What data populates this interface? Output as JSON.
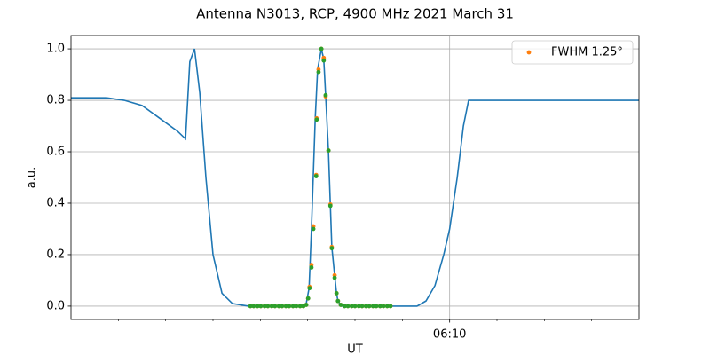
{
  "chart_data": [
    {
      "type": "line",
      "title": "Antenna N3013, RCP, 4900 MHz 2021 March 31",
      "xlabel": "UT",
      "ylabel": "a.u.",
      "x": [
        2.0,
        2.375,
        2.75,
        3.125,
        3.5,
        3.875,
        4.25,
        4.42,
        4.51,
        4.61,
        4.72,
        4.85,
        5.0,
        5.19,
        5.41,
        5.75,
        6.125,
        6.875,
        6.97,
        7.03,
        7.08,
        7.16,
        7.21,
        7.29,
        7.34,
        7.38,
        7.44,
        7.48,
        7.51,
        7.57,
        7.61,
        7.64,
        7.72,
        8.375,
        9.31,
        9.5,
        9.69,
        9.875,
        10.0,
        10.16,
        10.29,
        10.4,
        10.53,
        11.0,
        11.75,
        12.5,
        13.25,
        14.0
      ],
      "values": [
        0.81,
        0.81,
        0.81,
        0.8,
        0.78,
        0.73,
        0.68,
        0.65,
        0.95,
        1.0,
        0.83,
        0.5,
        0.2,
        0.05,
        0.01,
        0.0,
        0.0,
        0.0,
        0.01,
        0.07,
        0.3,
        0.73,
        0.92,
        1.0,
        0.96,
        0.82,
        0.6,
        0.39,
        0.23,
        0.12,
        0.05,
        0.02,
        0.0,
        0.0,
        0.0,
        0.02,
        0.08,
        0.2,
        0.3,
        0.5,
        0.7,
        0.8,
        0.8,
        0.8,
        0.8,
        0.8,
        0.8,
        0.8
      ],
      "color": "#1f77b4",
      "xlim": [
        2,
        14
      ],
      "xticks": [
        {
          "value": 10,
          "label": "06:10"
        }
      ],
      "xminorticks": [
        3,
        4,
        5,
        6,
        7,
        8,
        9,
        11,
        12,
        13
      ],
      "ylim": [
        -0.052,
        1.052
      ],
      "yticks": [
        {
          "value": 0,
          "label": "0.0"
        },
        0.2,
        0.4,
        0.6,
        0.8,
        {
          "value": 1,
          "label": "1.0"
        }
      ],
      "grid": true
    },
    {
      "type": "scatter",
      "legend": "upper right",
      "x": [
        5.79,
        5.86,
        5.94,
        6.01,
        6.09,
        6.16,
        6.24,
        6.31,
        6.39,
        6.46,
        6.54,
        6.61,
        6.69,
        6.76,
        6.84,
        6.91,
        6.97,
        7.01,
        7.04,
        7.08,
        7.12,
        7.18,
        7.19,
        7.23,
        7.29,
        7.34,
        7.38,
        7.44,
        7.48,
        7.51,
        7.57,
        7.61,
        7.64,
        7.7,
        7.78,
        7.85,
        7.93,
        8.0,
        8.08,
        8.15,
        8.23,
        8.3,
        8.38,
        8.45,
        8.53,
        8.6,
        8.68,
        8.75
      ],
      "series": [
        {
          "name": "FWHM 1.25°",
          "color": "#ff7f0e",
          "values": [
            0,
            0,
            0,
            0,
            0,
            0,
            0,
            0,
            0,
            0,
            0,
            0,
            0,
            0,
            0,
            0,
            0.005,
            0.03,
            0.075,
            0.16,
            0.31,
            0.51,
            0.73,
            0.92,
            1.0,
            0.965,
            0.815,
            0.605,
            0.395,
            0.23,
            0.12,
            0.05,
            0.02,
            0.005,
            0,
            0,
            0,
            0,
            0,
            0,
            0,
            0,
            0,
            0,
            0,
            0,
            0,
            0
          ]
        },
        {
          "color": "#2ca02c",
          "values": [
            0,
            0,
            0,
            0,
            0,
            0,
            0,
            0,
            0,
            0,
            0,
            0,
            0,
            0,
            0,
            0,
            0.005,
            0.03,
            0.07,
            0.15,
            0.3,
            0.505,
            0.725,
            0.91,
            1.0,
            0.955,
            0.82,
            0.605,
            0.39,
            0.225,
            0.11,
            0.05,
            0.02,
            0.005,
            0,
            0,
            0,
            0,
            0,
            0,
            0,
            0,
            0,
            0,
            0,
            0,
            0,
            0
          ]
        }
      ]
    }
  ]
}
